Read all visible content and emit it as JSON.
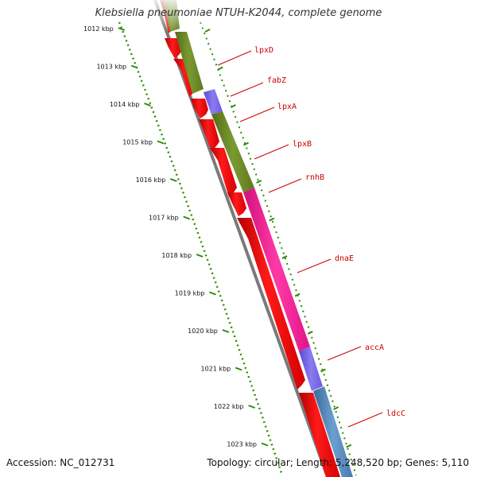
{
  "title": "Klebsiella pneumoniae NTUH-K2044, complete genome",
  "accession": "Accession: NC_012731",
  "summary": "Topology: circular; Length: 5,248,520 bp; Genes: 5,110",
  "scale": {
    "unit": "kbp",
    "ticks": [
      1012,
      1013,
      1014,
      1015,
      1016,
      1017,
      1018,
      1019,
      1020,
      1021,
      1022,
      1023
    ]
  },
  "colors": {
    "reverse_strand": "#ff0000",
    "lpx_fab_cluster": "#6b8e23",
    "fabZ": "#7b68ee",
    "rnhB_dnaE": "#ff1493",
    "accA": "#7b68ee",
    "ldcC": "#4682b4",
    "tick_green": "#2e8b00",
    "label_red": "#cc0000"
  },
  "genes": [
    {
      "name": "lpxD"
    },
    {
      "name": "fabZ"
    },
    {
      "name": "lpxA"
    },
    {
      "name": "lpxB"
    },
    {
      "name": "rnhB"
    },
    {
      "name": "dnaE"
    },
    {
      "name": "accA"
    },
    {
      "name": "ldcC"
    }
  ]
}
